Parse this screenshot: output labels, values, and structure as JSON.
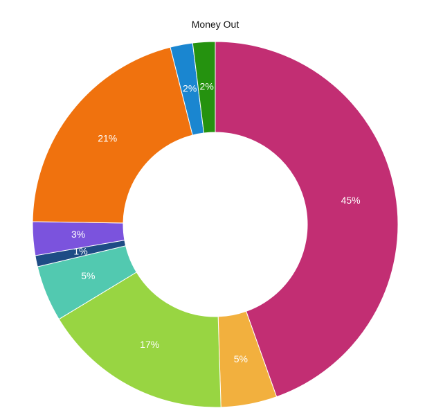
{
  "chart_data": {
    "type": "pie",
    "title": "Money Out",
    "donut": true,
    "slices": [
      {
        "value": 45,
        "label": "45%",
        "color": "#c22e73"
      },
      {
        "value": 5,
        "label": "5%",
        "color": "#f2b03e"
      },
      {
        "value": 17,
        "label": "17%",
        "color": "#98d542"
      },
      {
        "value": 5,
        "label": "5%",
        "color": "#52c9b0"
      },
      {
        "value": 1,
        "label": "1%",
        "color": "#1e4c85"
      },
      {
        "value": 3,
        "label": "3%",
        "color": "#7b53dd"
      },
      {
        "value": 21,
        "label": "21%",
        "color": "#f0720e"
      },
      {
        "value": 2,
        "label": "2%",
        "color": "#1a86d0"
      },
      {
        "value": 2,
        "label": "2%",
        "color": "#25920f"
      }
    ]
  }
}
